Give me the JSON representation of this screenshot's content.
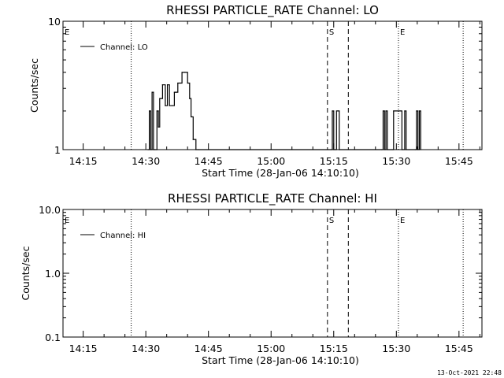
{
  "chart_data": [
    {
      "type": "line",
      "title": "RHESSI PARTICLE_RATE Channel: LO",
      "xlabel": "Start Time (28-Jan-06 14:10:10)",
      "ylabel": "Counts/sec",
      "xlim": [
        "14:10:10",
        "15:50:30"
      ],
      "ylim": [
        1,
        10
      ],
      "yscale": "log",
      "x_ticks": [
        "14:15",
        "14:30",
        "14:45",
        "15:00",
        "15:15",
        "15:30",
        "15:45"
      ],
      "y_ticks": [
        "1",
        "10"
      ],
      "legend": "top-left",
      "series": [
        {
          "name": "Channel: LO",
          "x": [
            "14:30:30",
            "14:30:50",
            "14:31:10",
            "14:31:30",
            "14:31:50",
            "14:32:10",
            "14:32:40",
            "14:33:00",
            "14:33:20",
            "14:34:00",
            "14:34:40",
            "14:35:10",
            "14:35:40",
            "14:36:20",
            "14:36:50",
            "14:37:10",
            "14:37:40",
            "14:38:10",
            "14:38:40",
            "14:39:20",
            "14:40:00",
            "14:40:30",
            "14:40:50",
            "14:41:20",
            "14:42:00",
            "14:42:40",
            "15:14:20",
            "15:14:40",
            "15:15:00",
            "15:15:20",
            "15:15:40",
            "15:16:00",
            "15:16:20",
            "15:26:30",
            "15:26:50",
            "15:27:10",
            "15:27:30",
            "15:27:50",
            "15:29:00",
            "15:29:20",
            "15:30:40",
            "15:31:00",
            "15:31:20",
            "15:32:00",
            "15:32:20",
            "15:33:00",
            "15:34:30",
            "15:34:50",
            "15:35:10",
            "15:35:30",
            "15:35:50"
          ],
          "values": [
            1,
            2,
            1,
            2.8,
            1,
            1,
            2,
            1.5,
            2.5,
            3.2,
            2.2,
            3.2,
            2.2,
            2.2,
            2.8,
            2.8,
            3.3,
            3.3,
            4,
            4,
            3.3,
            2.5,
            1.8,
            1.2,
            1,
            1,
            1,
            2,
            1,
            1,
            2,
            2,
            1,
            1,
            2,
            1,
            2,
            1,
            1,
            2,
            2,
            2,
            1,
            2,
            1,
            1,
            1,
            2,
            1,
            2,
            1
          ]
        }
      ],
      "markers": [
        {
          "label": "E",
          "time": "14:10:10",
          "style": "dotted"
        },
        {
          "label": "",
          "time": "14:26:30",
          "style": "dotted"
        },
        {
          "label": "S",
          "time": "15:13:30",
          "style": "dashed"
        },
        {
          "label": "",
          "time": "15:18:30",
          "style": "dashed"
        },
        {
          "label": "E",
          "time": "15:30:30",
          "style": "dotted"
        },
        {
          "label": "",
          "time": "15:46:00",
          "style": "dotted"
        }
      ]
    },
    {
      "type": "line",
      "title": "RHESSI PARTICLE_RATE Channel: HI",
      "xlabel": "Start Time (28-Jan-06 14:10:10)",
      "ylabel": "Counts/sec",
      "xlim": [
        "14:10:10",
        "15:50:30"
      ],
      "ylim": [
        0.1,
        10
      ],
      "yscale": "log",
      "x_ticks": [
        "14:15",
        "14:30",
        "14:45",
        "15:00",
        "15:15",
        "15:30",
        "15:45"
      ],
      "y_ticks": [
        "0.1",
        "1.0",
        "10.0"
      ],
      "legend": "top-left",
      "series": [
        {
          "name": "Channel: HI",
          "x": [],
          "values": []
        }
      ],
      "markers": [
        {
          "label": "E",
          "time": "14:10:10",
          "style": "dotted"
        },
        {
          "label": "",
          "time": "14:26:30",
          "style": "dotted"
        },
        {
          "label": "S",
          "time": "15:13:30",
          "style": "dashed"
        },
        {
          "label": "",
          "time": "15:18:30",
          "style": "dashed"
        },
        {
          "label": "E",
          "time": "15:30:30",
          "style": "dotted"
        },
        {
          "label": "",
          "time": "15:46:00",
          "style": "dotted"
        }
      ]
    }
  ],
  "footer": {
    "timestamp": "13-Oct-2021 22:48"
  }
}
